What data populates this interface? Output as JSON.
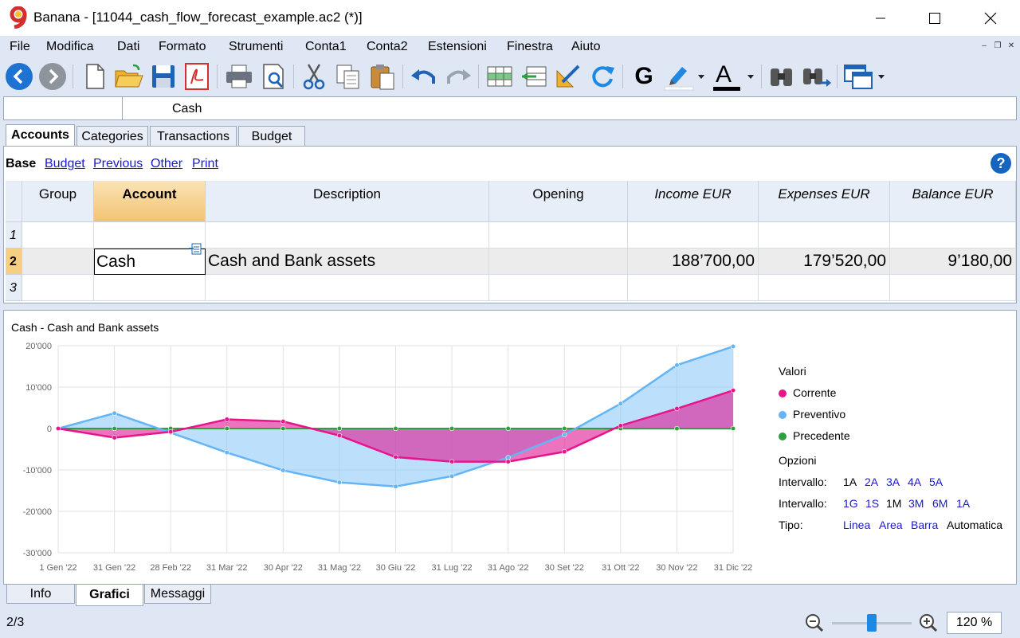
{
  "window": {
    "title": "Banana - [11044_cash_flow_forecast_example.ac2 (*)]"
  },
  "menu": [
    "File",
    "Modifica",
    "Dati",
    "Formato",
    "Strumenti",
    "Conta1",
    "Conta2",
    "Estensioni",
    "Finestra",
    "Aiuto"
  ],
  "toolbar": {
    "icons": [
      "back-icon",
      "forward-icon",
      "new-file-icon",
      "open-folder-icon",
      "save-icon",
      "pdf-icon",
      "print-icon",
      "print-preview-icon",
      "cut-icon",
      "copy-icon",
      "paste-icon",
      "undo-icon",
      "redo-icon",
      "insert-rows-icon",
      "move-rows-icon",
      "edit-tool-icon",
      "refresh-icon",
      "bold-icon",
      "highlight-color-icon",
      "font-color-icon",
      "find-icon",
      "find-next-icon",
      "window-layout-icon"
    ],
    "bold_glyph": "G",
    "font_color_glyph": "A"
  },
  "cellbar": {
    "ref": "",
    "content": "Cash"
  },
  "table_tabs": [
    "Accounts",
    "Categories",
    "Transactions",
    "Budget"
  ],
  "views": {
    "active": "Base",
    "links": [
      "Budget",
      "Previous",
      "Other",
      "Print"
    ]
  },
  "help_glyph": "?",
  "grid": {
    "columns": [
      "Group",
      "Account",
      "Description",
      "Opening",
      "Income EUR",
      "Expenses EUR",
      "Balance EUR"
    ],
    "row_numbers": [
      "1",
      "2",
      "3"
    ],
    "rows": [
      {
        "group": "",
        "account": "",
        "description": "",
        "opening": "",
        "income": "",
        "expenses": "",
        "balance": ""
      },
      {
        "group": "",
        "account": "Cash",
        "description": "Cash and Bank assets",
        "opening": "",
        "income": "188’700,00",
        "expenses": "179’520,00",
        "balance": "9’180,00"
      },
      {
        "group": "",
        "account": "",
        "description": "",
        "opening": "",
        "income": "",
        "expenses": "",
        "balance": ""
      }
    ]
  },
  "chart_data": {
    "type": "area",
    "title": "Cash - Cash and Bank assets",
    "categories": [
      "1 Gen '22",
      "31 Gen '22",
      "28 Feb '22",
      "31 Mar '22",
      "30 Apr '22",
      "31 Mag '22",
      "30 Giu '22",
      "31 Lug '22",
      "31 Ago '22",
      "30 Set '22",
      "31 Ott '22",
      "30 Nov '22",
      "31 Dic '22"
    ],
    "y_ticks": [
      "20'000",
      "10'000",
      "0",
      "-10'000",
      "-20'000",
      "-30'000"
    ],
    "ylim": [
      -30000,
      20000
    ],
    "grid": true,
    "legend_position": "right",
    "series": [
      {
        "name": "Corrente",
        "color": "#e8148c",
        "values": [
          0,
          -2200,
          -800,
          2200,
          1700,
          -1700,
          -6900,
          -8000,
          -8000,
          -5600,
          700,
          4800,
          9200
        ]
      },
      {
        "name": "Preventivo",
        "color": "#64b5f6",
        "values": [
          0,
          3700,
          -1000,
          -5800,
          -10100,
          -13000,
          -14000,
          -11500,
          -7000,
          -1500,
          6000,
          15300,
          19800
        ]
      },
      {
        "name": "Precedente",
        "color": "#2e9e40",
        "values": [
          0,
          0,
          0,
          0,
          0,
          0,
          0,
          0,
          0,
          0,
          0,
          0,
          0
        ]
      }
    ]
  },
  "chart_panel": {
    "legend_title": "Valori",
    "options_title": "Opzioni",
    "interval_label": "Intervallo:",
    "interval_a": [
      "1A",
      "2A",
      "3A",
      "4A",
      "5A"
    ],
    "interval_b": [
      "1G",
      "1S",
      "1M",
      "3M",
      "6M",
      "1A"
    ],
    "type_label": "Tipo:",
    "type_options": [
      "Linea",
      "Area",
      "Barra",
      "Automatica"
    ]
  },
  "bottom_tabs": [
    "Info",
    "Grafici",
    "Messaggi"
  ],
  "status": {
    "position": "2/3",
    "zoom": "120 %",
    "zoom_level": 0.5
  }
}
